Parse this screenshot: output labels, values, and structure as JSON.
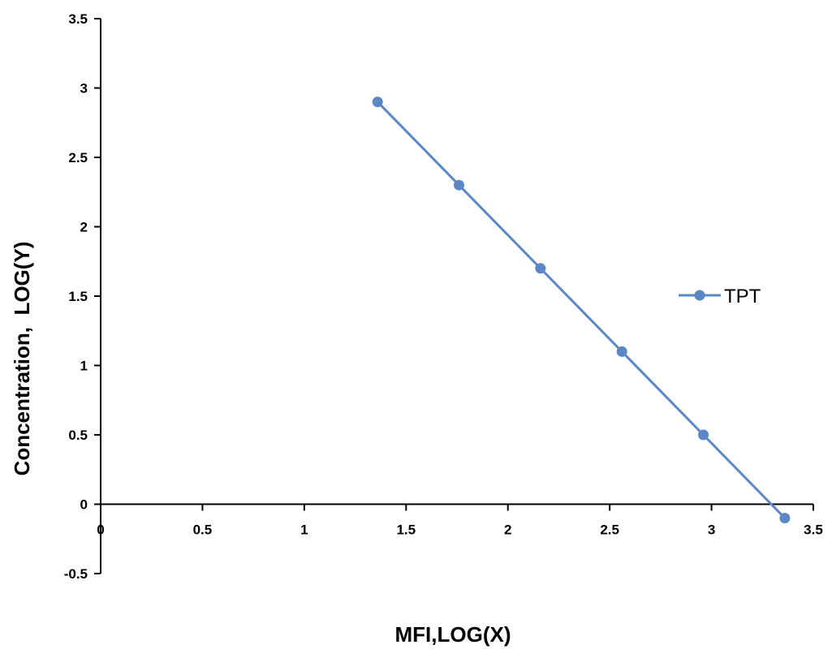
{
  "chart_data": {
    "type": "line",
    "title": "",
    "xlabel": "MFI,LOG(X)",
    "ylabel": "Concentration,  LOG(Y)",
    "xlim": [
      0,
      3.5
    ],
    "ylim": [
      -0.5,
      3.5
    ],
    "xticks": [
      0,
      0.5,
      1,
      1.5,
      2,
      2.5,
      3,
      3.5
    ],
    "xtick_labels": [
      "0",
      "0.5",
      "1",
      "1.5",
      "2",
      "2.5",
      "3",
      "3.5"
    ],
    "yticks": [
      -0.5,
      0,
      0.5,
      1,
      1.5,
      2,
      2.5,
      3,
      3.5
    ],
    "ytick_labels": [
      "-0.5",
      "0",
      "0.5",
      "1",
      "1.5",
      "2",
      "2.5",
      "3",
      "3.5"
    ],
    "grid": false,
    "legend_position": "right",
    "series": [
      {
        "name": "TPT",
        "color": "#5b87c4",
        "x": [
          1.36,
          1.76,
          2.16,
          2.56,
          2.96,
          3.36
        ],
        "y": [
          2.9,
          2.3,
          1.7,
          1.1,
          0.5,
          -0.1
        ]
      }
    ]
  }
}
